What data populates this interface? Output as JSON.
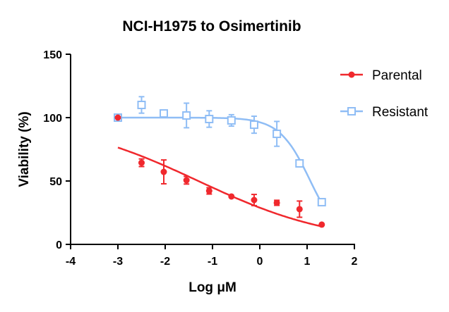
{
  "chart_data": {
    "type": "scatter",
    "title": "NCI-H1975 to Osimertinib",
    "xlabel": "Log μM",
    "ylabel": "Viability (%)",
    "xlim": [
      -4,
      2
    ],
    "ylim": [
      0,
      150
    ],
    "xticks": [
      -4,
      -3,
      -2,
      -1,
      0,
      1,
      2
    ],
    "yticks": [
      0,
      50,
      100,
      150
    ],
    "grid": false,
    "legend_position": "top-right",
    "series": [
      {
        "name": "Parental",
        "color": "#f0282d",
        "marker": "filled-circle",
        "x": [
          -3,
          -2.5,
          -2.03,
          -1.55,
          -1.07,
          -0.6,
          -0.12,
          0.36,
          0.84,
          1.31
        ],
        "y": [
          100,
          64.4,
          57.2,
          50.6,
          42.2,
          37.8,
          35,
          32.8,
          27.8,
          15.6
        ],
        "error": [
          0,
          3,
          9.4,
          3,
          2.5,
          0,
          4.4,
          2,
          6.4,
          0
        ]
      },
      {
        "name": "Resistant",
        "color": "#8fbdf5",
        "marker": "open-square",
        "x": [
          -3,
          -2.5,
          -2.03,
          -1.55,
          -1.07,
          -0.6,
          -0.12,
          0.36,
          0.84,
          1.31
        ],
        "y": [
          100,
          110,
          103.3,
          101.7,
          98.9,
          97.8,
          94.4,
          87.2,
          63.9,
          33.3
        ],
        "error": [
          0,
          6.5,
          2,
          9.7,
          6.5,
          4.5,
          6.7,
          9.8,
          0,
          0
        ]
      }
    ]
  }
}
